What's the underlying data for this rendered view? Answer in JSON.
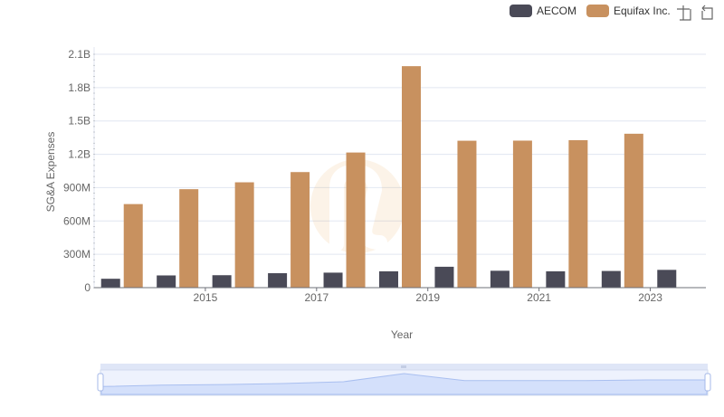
{
  "chart_data": {
    "type": "bar",
    "xlabel": "Year",
    "ylabel": "SG&A Expenses",
    "ylim": [
      0,
      2100000000
    ],
    "yticks": [
      0,
      300000000,
      600000000,
      900000000,
      1200000000,
      1500000000,
      1800000000,
      2100000000
    ],
    "ytick_labels": [
      "0",
      "300M",
      "600M",
      "900M",
      "1.2B",
      "1.5B",
      "1.8B",
      "2.1B"
    ],
    "x": [
      2014,
      2015,
      2016,
      2017,
      2018,
      2019,
      2020,
      2021,
      2022,
      2023,
      2024
    ],
    "xtick_labels": [
      "2015",
      "2017",
      "2019",
      "2021",
      "2023"
    ],
    "xtick_values": [
      2015,
      2017,
      2019,
      2021,
      2023
    ],
    "grid": true,
    "legend_position": "top-right",
    "series": [
      {
        "name": "AECOM",
        "color": "#4a4a57",
        "values": [
          80000000,
          110000000,
          112000000,
          130000000,
          135000000,
          147000000,
          188000000,
          152000000,
          147000000,
          150000000,
          160000000
        ]
      },
      {
        "name": "Equifax Inc.",
        "color": "#c8915f",
        "values": [
          752000000,
          886000000,
          948000000,
          1040000000,
          1216000000,
          1993000000,
          1322000000,
          1323000000,
          1327000000,
          1385000000,
          null
        ]
      }
    ]
  },
  "toolbar": {
    "zoom_icon": "zoom-select-icon",
    "restore_icon": "restore-icon"
  },
  "slider": {
    "fill_color": "#d4e0fb",
    "handle_color": "#a5b8e8"
  }
}
